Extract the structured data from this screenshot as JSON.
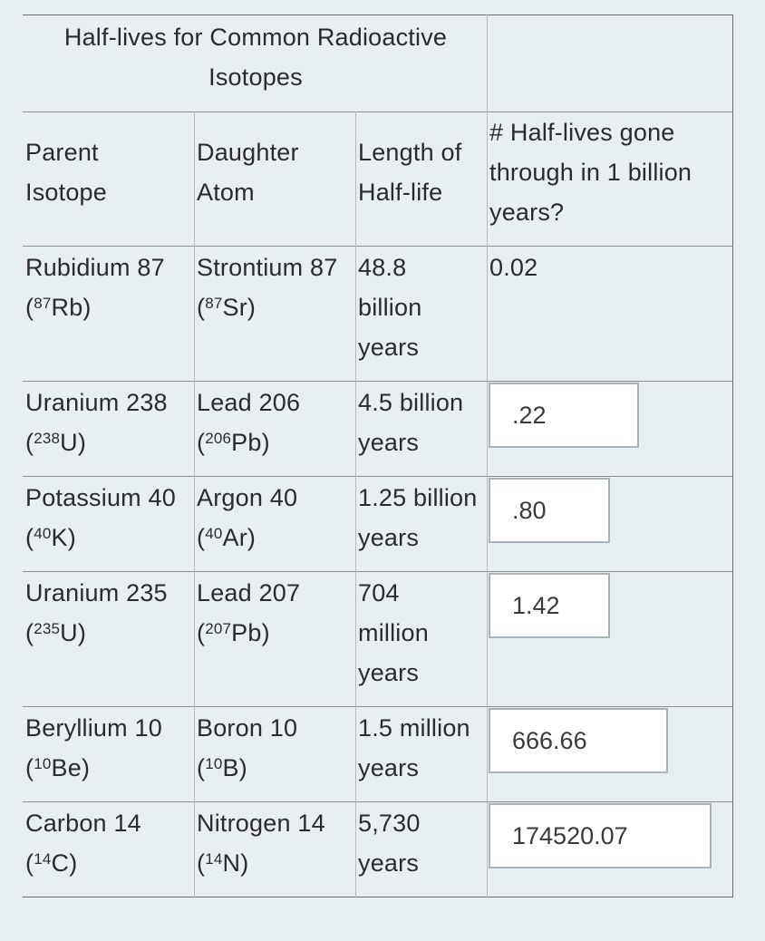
{
  "title": "Half-lives for Common Radioactive Isotopes",
  "headers": {
    "parent_1": "Parent",
    "parent_2": "Isotope",
    "daughter_1": "Daughter",
    "daughter_2": "Atom",
    "length_1": "Length of",
    "length_2": "Half-life",
    "halflives_1": "# Half-lives gone",
    "halflives_2": "through in 1 billion",
    "halflives_3": "years?"
  },
  "rows": [
    {
      "parent_name": "Rubidium 87",
      "parent_sym_open": "(",
      "parent_mass": "87",
      "parent_sym": "Rb)",
      "daughter_name": "Strontium 87",
      "daughter_sym_open": "(",
      "daughter_mass": "87",
      "daughter_sym": "Sr)",
      "half_life_1": "48.8",
      "half_life_2": "billion",
      "half_life_3": "years",
      "answer": "0.02"
    },
    {
      "parent_name": "Uranium 238",
      "parent_sym_open": "(",
      "parent_mass": "238",
      "parent_sym": "U)",
      "daughter_name": "Lead 206",
      "daughter_sym_open": "(",
      "daughter_mass": "206",
      "daughter_sym": "Pb)",
      "half_life_1": "4.5 billion",
      "half_life_2": "years",
      "answer": ".22"
    },
    {
      "parent_name": "Potassium 40",
      "parent_sym_open": "(",
      "parent_mass": "40",
      "parent_sym": "K)",
      "daughter_name": "Argon 40",
      "daughter_sym_open": "(",
      "daughter_mass": "40",
      "daughter_sym": "Ar)",
      "half_life_1": "1.25 billion",
      "half_life_2": "years",
      "answer": ".80"
    },
    {
      "parent_name": "Uranium 235",
      "parent_sym_open": "(",
      "parent_mass": "235",
      "parent_sym": "U)",
      "daughter_name": "Lead 207",
      "daughter_sym_open": "(",
      "daughter_mass": "207",
      "daughter_sym": "Pb)",
      "half_life_1": "704",
      "half_life_2": "million",
      "half_life_3": "years",
      "answer": "1.42"
    },
    {
      "parent_name": "Beryllium 10",
      "parent_sym_open": "(",
      "parent_mass": "10",
      "parent_sym": "Be)",
      "daughter_name": "Boron 10",
      "daughter_sym_open": "(",
      "daughter_mass": "10",
      "daughter_sym": "B)",
      "half_life_1": "1.5 million",
      "half_life_2": "years",
      "answer": "666.66"
    },
    {
      "parent_name": "Carbon 14",
      "parent_sym_open": "(",
      "parent_mass": "14",
      "parent_sym": "C)",
      "daughter_name": "Nitrogen 14",
      "daughter_sym_open": "(",
      "daughter_mass": "14",
      "daughter_sym": "N)",
      "half_life_1": "5,730",
      "half_life_2": "years",
      "answer": "174520.07"
    }
  ]
}
